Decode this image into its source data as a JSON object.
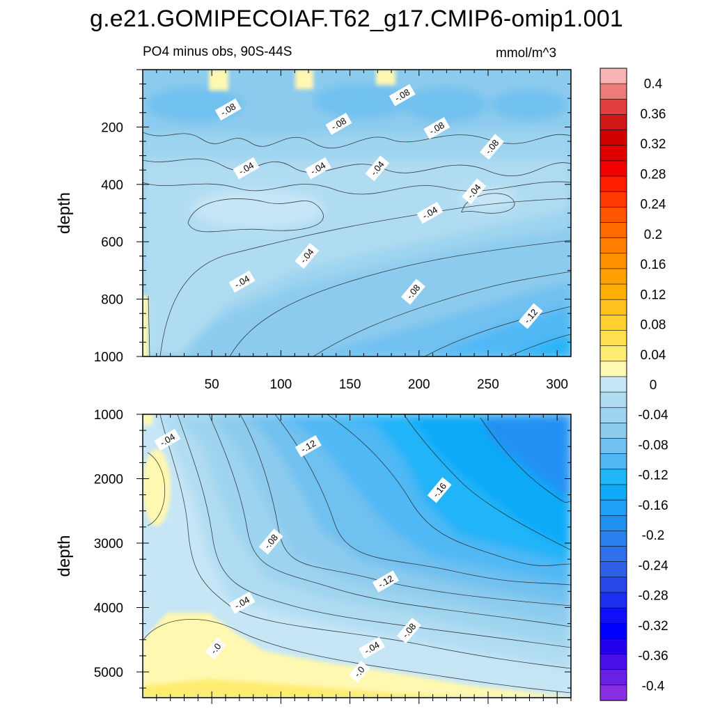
{
  "figure": {
    "title": "g.e21.GOMIPECOIAF.T62_g17.CMIP6-omip1.001",
    "left_subtitle": "PO4 minus obs, 90S-44S",
    "right_subtitle": "mmol/m^3"
  },
  "chart_data": [
    {
      "type": "heatmap",
      "panel": "upper",
      "title": "PO4 minus obs, 90S-44S",
      "units": "mmol/m^3",
      "xlabel": "",
      "ylabel": "depth",
      "xlim": [
        0,
        310
      ],
      "ylim": [
        1000,
        0
      ],
      "x_ticks": [
        50,
        100,
        150,
        200,
        250,
        300
      ],
      "y_ticks": [
        200,
        400,
        600,
        800,
        1000
      ],
      "contour_labels": [
        {
          "text": "-.08",
          "x": 62,
          "y": 140
        },
        {
          "text": "-.08",
          "x": 142,
          "y": 190
        },
        {
          "text": "-.08",
          "x": 188,
          "y": 90
        },
        {
          "text": "-.08",
          "x": 213,
          "y": 205
        },
        {
          "text": "-.08",
          "x": 253,
          "y": 270
        },
        {
          "text": "-.04",
          "x": 75,
          "y": 345
        },
        {
          "text": "-.04",
          "x": 127,
          "y": 345
        },
        {
          "text": "-.04",
          "x": 170,
          "y": 345
        },
        {
          "text": "-.04",
          "x": 240,
          "y": 425
        },
        {
          "text": "-.04",
          "x": 208,
          "y": 500
        },
        {
          "text": "-.04",
          "x": 119,
          "y": 650
        },
        {
          "text": "-.04",
          "x": 72,
          "y": 740
        },
        {
          "text": "-.08",
          "x": 196,
          "y": 775
        },
        {
          "text": "-.12",
          "x": 281,
          "y": 860
        }
      ]
    },
    {
      "type": "heatmap",
      "panel": "lower",
      "xlabel": "",
      "ylabel": "depth",
      "xlim": [
        0,
        310
      ],
      "ylim": [
        5400,
        1000
      ],
      "x_ticks": [
        50,
        100,
        150,
        200,
        250,
        300
      ],
      "y_ticks": [
        1000,
        2000,
        3000,
        4000,
        5000
      ],
      "contour_labels": [
        {
          "text": "-.04",
          "x": 18,
          "y": 1400
        },
        {
          "text": "-.12",
          "x": 120,
          "y": 1500
        },
        {
          "text": "-.16",
          "x": 215,
          "y": 2180
        },
        {
          "text": "-.08",
          "x": 93,
          "y": 2980
        },
        {
          "text": "-.12",
          "x": 176,
          "y": 3600
        },
        {
          "text": "-.04",
          "x": 72,
          "y": 3930
        },
        {
          "text": "-.08",
          "x": 193,
          "y": 4360
        },
        {
          "text": "-.04",
          "x": 166,
          "y": 4630
        },
        {
          "text": "-.0",
          "x": 53,
          "y": 4640
        },
        {
          "text": "-.0",
          "x": 157,
          "y": 5000
        }
      ]
    },
    {
      "type": "colorbar",
      "units": "mmol/m^3",
      "levels": [
        -0.4,
        -0.38,
        -0.36,
        -0.34,
        -0.32,
        -0.3,
        -0.28,
        -0.26,
        -0.24,
        -0.22,
        -0.2,
        -0.18,
        -0.16,
        -0.14,
        -0.12,
        -0.1,
        -0.08,
        -0.06,
        -0.04,
        -0.02,
        0,
        0.02,
        0.04,
        0.06,
        0.08,
        0.1,
        0.12,
        0.14,
        0.16,
        0.18,
        0.2,
        0.22,
        0.24,
        0.26,
        0.28,
        0.3,
        0.32,
        0.34,
        0.36,
        0.38,
        0.4
      ],
      "tick_labels": [
        "0.4",
        "0.36",
        "0.32",
        "0.28",
        "0.24",
        "0.2",
        "0.16",
        "0.12",
        "0.08",
        "0.04",
        "0",
        "-0.04",
        "-0.08",
        "-0.12",
        "-0.16",
        "-0.2",
        "-0.24",
        "-0.28",
        "-0.32",
        "-0.36",
        "-0.4"
      ],
      "colors_top_to_bottom": [
        "#f9b4b4",
        "#f07a7a",
        "#e04040",
        "#d01818",
        "#d00000",
        "#e00000",
        "#f00000",
        "#ff1f00",
        "#ff3a00",
        "#ff5500",
        "#ff6a00",
        "#ff7f00",
        "#ff9000",
        "#ffa000",
        "#ffb000",
        "#ffc020",
        "#ffd030",
        "#ffe050",
        "#ffec70",
        "#fff8b0",
        "#c6e6f6",
        "#b0dcf2",
        "#9ed4ef",
        "#8ccbee",
        "#70c0f0",
        "#50b8f5",
        "#20b4f8",
        "#10aaf8",
        "#20a0f8",
        "#2090f2",
        "#2a80ee",
        "#3070ec",
        "#3060e8",
        "#2848e8",
        "#1c30f0",
        "#1010f8",
        "#0000ff",
        "#2200ee",
        "#4a10e8",
        "#6a20e4",
        "#8a30e4"
      ]
    }
  ],
  "icons": [
    "colorbar-swatch"
  ],
  "colors": {
    "zero_minus": "#c6e6f6",
    "zero_plus": "#fff8b0",
    "axis": "#000000"
  }
}
